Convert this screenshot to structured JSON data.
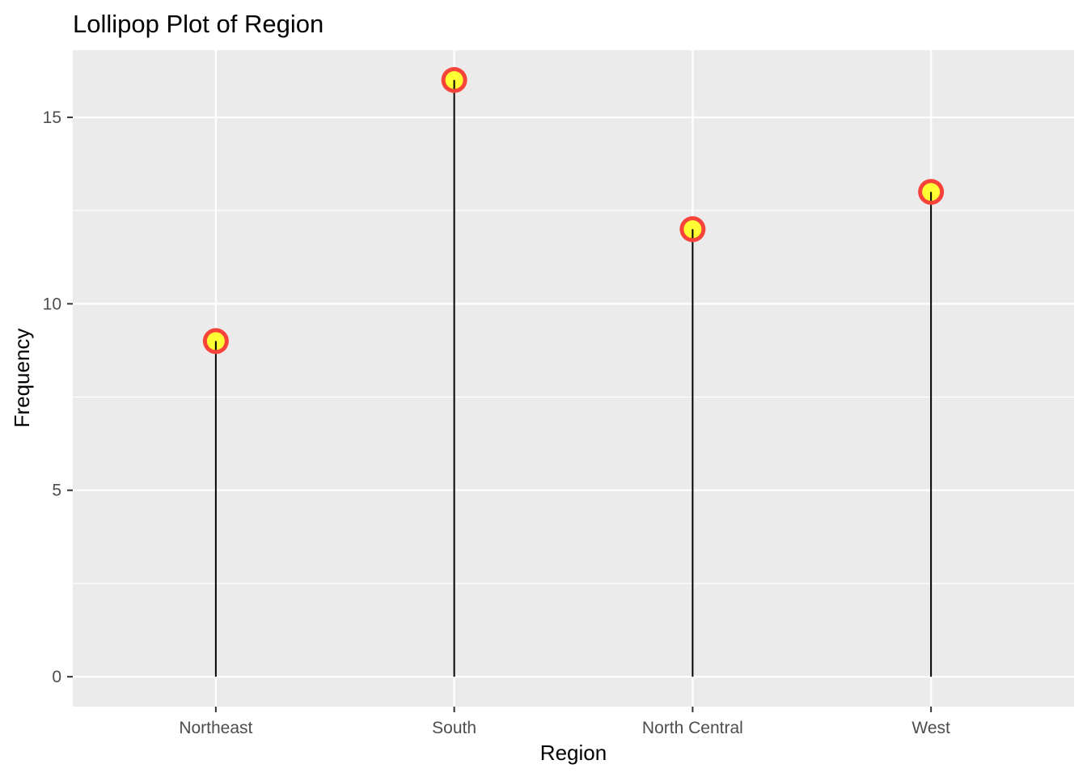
{
  "chart_data": {
    "type": "lollipop",
    "title": "Lollipop Plot of Region",
    "xlabel": "Region",
    "ylabel": "Frequency",
    "categories": [
      "Northeast",
      "South",
      "North Central",
      "West"
    ],
    "values": [
      9,
      16,
      12,
      13
    ],
    "ylim": [
      -0.8,
      16.8
    ],
    "yticks": [
      0,
      5,
      10,
      15
    ],
    "grid": true,
    "legend": "none",
    "colors": {
      "panel_background": "#EBEBEB",
      "grid": "#FFFFFF",
      "stem": "#000000",
      "point_fill": "#FFFF33",
      "point_outline": "#F8433A",
      "tick_text": "#4D4D4D"
    }
  }
}
